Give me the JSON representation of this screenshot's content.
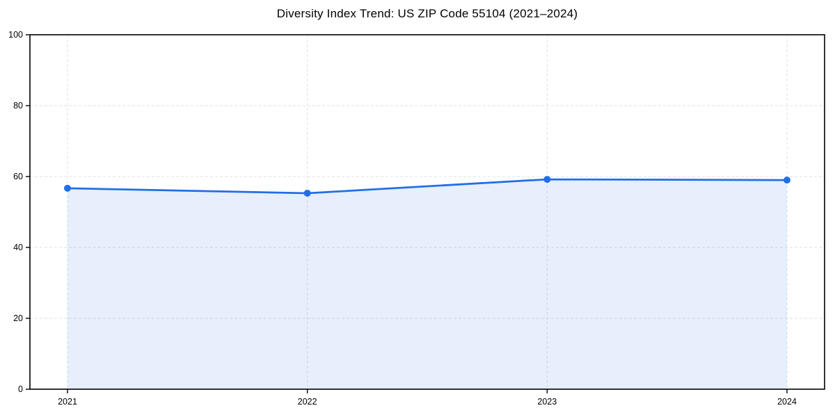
{
  "chart_data": {
    "type": "area",
    "title": "Diversity Index Trend: US ZIP Code 55104 (2021–2024)",
    "categories": [
      "2021",
      "2022",
      "2023",
      "2024"
    ],
    "values": [
      56.7,
      55.3,
      59.2,
      59.0
    ],
    "xlabel": "",
    "ylabel": "",
    "ylim": [
      0,
      100
    ],
    "yticks": [
      0,
      20,
      40,
      60,
      80,
      100
    ],
    "grid": true,
    "grid_style": "dashed",
    "legend": "none",
    "marker": "circle",
    "colors": {
      "line": "#236ee6",
      "marker": "#236ee6",
      "area_fill_rgba": "rgba(35,110,230,0.11)",
      "grid": "#e0e0e0",
      "axis": "#000000",
      "text": "#000000",
      "background": "#ffffff"
    }
  }
}
